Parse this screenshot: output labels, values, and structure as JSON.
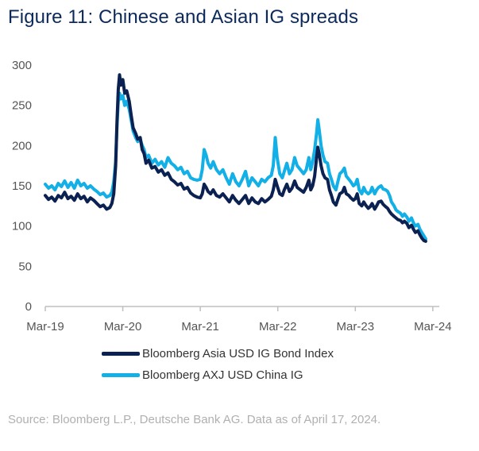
{
  "title": "Figure 11: Chinese and Asian IG spreads",
  "source": "Source: Bloomberg L.P., Deutsche Bank AG. Data as of April 17, 2024.",
  "colors": {
    "asia": "#0b2151",
    "china": "#12b0e6",
    "axis": "#bfbfbf"
  },
  "chart_data": {
    "type": "line",
    "title": "Figure 11: Chinese and Asian IG spreads",
    "xlabel": "",
    "ylabel": "",
    "ylim": [
      0,
      300
    ],
    "yticks": [
      "0",
      "50",
      "100",
      "150",
      "200",
      "250",
      "300"
    ],
    "xtick_labels": [
      "Mar-19",
      "Mar-20",
      "Mar-21",
      "Mar-22",
      "Mar-23",
      "Mar-24"
    ],
    "x_unit": "months since Mar-19",
    "x_range": [
      0,
      61
    ],
    "grid": false,
    "legend_position": "bottom",
    "series": [
      {
        "name": "Bloomberg Asia USD IG Bond Index",
        "color": "#0b2151",
        "points": [
          [
            0,
            138
          ],
          [
            0.5,
            133
          ],
          [
            1,
            136
          ],
          [
            1.5,
            131
          ],
          [
            2,
            138
          ],
          [
            2.5,
            135
          ],
          [
            3,
            142
          ],
          [
            3.5,
            134
          ],
          [
            4,
            137
          ],
          [
            4.5,
            132
          ],
          [
            5,
            140
          ],
          [
            5.5,
            134
          ],
          [
            6,
            137
          ],
          [
            6.5,
            130
          ],
          [
            7,
            135
          ],
          [
            7.5,
            132
          ],
          [
            8,
            128
          ],
          [
            8.5,
            124
          ],
          [
            9,
            126
          ],
          [
            9.5,
            121
          ],
          [
            10,
            123
          ],
          [
            10.3,
            128
          ],
          [
            10.6,
            140
          ],
          [
            10.9,
            175
          ],
          [
            11.1,
            230
          ],
          [
            11.3,
            270
          ],
          [
            11.5,
            288
          ],
          [
            11.7,
            275
          ],
          [
            12,
            282
          ],
          [
            12.3,
            265
          ],
          [
            12.6,
            268
          ],
          [
            13,
            255
          ],
          [
            13.3,
            238
          ],
          [
            13.6,
            222
          ],
          [
            14,
            215
          ],
          [
            14.3,
            208
          ],
          [
            14.7,
            210
          ],
          [
            15,
            195
          ],
          [
            15.3,
            190
          ],
          [
            15.6,
            178
          ],
          [
            16,
            182
          ],
          [
            16.5,
            172
          ],
          [
            17,
            174
          ],
          [
            17.5,
            167
          ],
          [
            18,
            170
          ],
          [
            18.5,
            163
          ],
          [
            19,
            166
          ],
          [
            19.5,
            158
          ],
          [
            20,
            155
          ],
          [
            20.5,
            151
          ],
          [
            21,
            153
          ],
          [
            21.5,
            146
          ],
          [
            22,
            148
          ],
          [
            22.5,
            141
          ],
          [
            23,
            138
          ],
          [
            23.5,
            136
          ],
          [
            24,
            135
          ],
          [
            24.3,
            140
          ],
          [
            24.6,
            152
          ],
          [
            24.9,
            148
          ],
          [
            25.2,
            143
          ],
          [
            25.6,
            140
          ],
          [
            26,
            145
          ],
          [
            26.5,
            138
          ],
          [
            27,
            136
          ],
          [
            27.5,
            140
          ],
          [
            28,
            135
          ],
          [
            28.5,
            130
          ],
          [
            29,
            138
          ],
          [
            29.5,
            132
          ],
          [
            30,
            128
          ],
          [
            30.5,
            133
          ],
          [
            31,
            138
          ],
          [
            31.5,
            128
          ],
          [
            32,
            135
          ],
          [
            32.5,
            130
          ],
          [
            33,
            128
          ],
          [
            33.5,
            134
          ],
          [
            34,
            130
          ],
          [
            34.5,
            133
          ],
          [
            35,
            137
          ],
          [
            35.3,
            145
          ],
          [
            35.6,
            158
          ],
          [
            35.9,
            150
          ],
          [
            36.3,
            140
          ],
          [
            36.7,
            138
          ],
          [
            37,
            145
          ],
          [
            37.4,
            152
          ],
          [
            37.8,
            143
          ],
          [
            38.2,
            147
          ],
          [
            38.6,
            156
          ],
          [
            39,
            148
          ],
          [
            39.5,
            145
          ],
          [
            40,
            142
          ],
          [
            40.4,
            148
          ],
          [
            40.8,
            157
          ],
          [
            41.1,
            145
          ],
          [
            41.4,
            150
          ],
          [
            41.7,
            162
          ],
          [
            42,
            185
          ],
          [
            42.2,
            198
          ],
          [
            42.4,
            190
          ],
          [
            42.7,
            175
          ],
          [
            43,
            165
          ],
          [
            43.3,
            160
          ],
          [
            43.7,
            158
          ],
          [
            44,
            145
          ],
          [
            44.3,
            138
          ],
          [
            44.6,
            130
          ],
          [
            45,
            126
          ],
          [
            45.3,
            133
          ],
          [
            45.6,
            140
          ],
          [
            46,
            142
          ],
          [
            46.3,
            148
          ],
          [
            46.6,
            140
          ],
          [
            47,
            138
          ],
          [
            47.3,
            135
          ],
          [
            47.7,
            132
          ],
          [
            48,
            134
          ],
          [
            48.3,
            140
          ],
          [
            48.6,
            128
          ],
          [
            49,
            125
          ],
          [
            49.3,
            130
          ],
          [
            49.6,
            126
          ],
          [
            50,
            122
          ],
          [
            50.3,
            124
          ],
          [
            50.6,
            128
          ],
          [
            51,
            121
          ],
          [
            51.3,
            125
          ],
          [
            51.6,
            130
          ],
          [
            52,
            131
          ],
          [
            52.3,
            127
          ],
          [
            52.7,
            124
          ],
          [
            53,
            122
          ],
          [
            53.3,
            118
          ],
          [
            53.6,
            115
          ],
          [
            54,
            112
          ],
          [
            54.3,
            110
          ],
          [
            54.6,
            108
          ],
          [
            55,
            107
          ],
          [
            55.3,
            104
          ],
          [
            55.6,
            106
          ],
          [
            56,
            103
          ],
          [
            56.3,
            98
          ],
          [
            56.7,
            101
          ],
          [
            57,
            96
          ],
          [
            57.3,
            92
          ],
          [
            57.7,
            94
          ],
          [
            58,
            89
          ],
          [
            58.3,
            85
          ],
          [
            58.6,
            82
          ],
          [
            58.9,
            81
          ]
        ]
      },
      {
        "name": "Bloomberg AXJ USD China IG",
        "color": "#12b0e6",
        "points": [
          [
            0,
            152
          ],
          [
            0.5,
            147
          ],
          [
            1,
            150
          ],
          [
            1.5,
            145
          ],
          [
            2,
            153
          ],
          [
            2.5,
            149
          ],
          [
            3,
            156
          ],
          [
            3.5,
            148
          ],
          [
            4,
            154
          ],
          [
            4.5,
            147
          ],
          [
            5,
            157
          ],
          [
            5.5,
            150
          ],
          [
            6,
            153
          ],
          [
            6.5,
            147
          ],
          [
            7,
            150
          ],
          [
            7.5,
            146
          ],
          [
            8,
            143
          ],
          [
            8.5,
            139
          ],
          [
            9,
            141
          ],
          [
            9.5,
            136
          ],
          [
            10,
            138
          ],
          [
            10.3,
            142
          ],
          [
            10.6,
            155
          ],
          [
            10.9,
            180
          ],
          [
            11.1,
            225
          ],
          [
            11.3,
            255
          ],
          [
            11.5,
            265
          ],
          [
            11.7,
            258
          ],
          [
            12,
            262
          ],
          [
            12.3,
            250
          ],
          [
            12.6,
            255
          ],
          [
            13,
            245
          ],
          [
            13.3,
            232
          ],
          [
            13.6,
            218
          ],
          [
            14,
            210
          ],
          [
            14.3,
            205
          ],
          [
            14.7,
            208
          ],
          [
            15,
            200
          ],
          [
            15.3,
            195
          ],
          [
            15.6,
            185
          ],
          [
            16,
            188
          ],
          [
            16.5,
            178
          ],
          [
            17,
            183
          ],
          [
            17.5,
            176
          ],
          [
            18,
            180
          ],
          [
            18.5,
            173
          ],
          [
            19,
            185
          ],
          [
            19.5,
            178
          ],
          [
            20,
            175
          ],
          [
            20.5,
            170
          ],
          [
            21,
            173
          ],
          [
            21.5,
            165
          ],
          [
            22,
            168
          ],
          [
            22.5,
            160
          ],
          [
            23,
            158
          ],
          [
            23.5,
            157
          ],
          [
            24,
            158
          ],
          [
            24.3,
            170
          ],
          [
            24.6,
            195
          ],
          [
            24.9,
            188
          ],
          [
            25.2,
            178
          ],
          [
            25.6,
            172
          ],
          [
            26,
            180
          ],
          [
            26.5,
            170
          ],
          [
            27,
            165
          ],
          [
            27.5,
            170
          ],
          [
            28,
            160
          ],
          [
            28.5,
            152
          ],
          [
            29,
            165
          ],
          [
            29.5,
            155
          ],
          [
            30,
            150
          ],
          [
            30.5,
            158
          ],
          [
            31,
            168
          ],
          [
            31.5,
            150
          ],
          [
            32,
            160
          ],
          [
            32.5,
            155
          ],
          [
            33,
            150
          ],
          [
            33.5,
            158
          ],
          [
            34,
            155
          ],
          [
            34.5,
            160
          ],
          [
            35,
            163
          ],
          [
            35.3,
            175
          ],
          [
            35.6,
            210
          ],
          [
            35.9,
            185
          ],
          [
            36.3,
            165
          ],
          [
            36.7,
            160
          ],
          [
            37,
            168
          ],
          [
            37.4,
            178
          ],
          [
            37.8,
            165
          ],
          [
            38.2,
            170
          ],
          [
            38.6,
            185
          ],
          [
            39,
            175
          ],
          [
            39.5,
            170
          ],
          [
            40,
            165
          ],
          [
            40.4,
            170
          ],
          [
            40.8,
            185
          ],
          [
            41.1,
            170
          ],
          [
            41.4,
            180
          ],
          [
            41.7,
            195
          ],
          [
            42,
            215
          ],
          [
            42.2,
            232
          ],
          [
            42.4,
            220
          ],
          [
            42.7,
            200
          ],
          [
            43,
            188
          ],
          [
            43.3,
            180
          ],
          [
            43.7,
            178
          ],
          [
            44,
            165
          ],
          [
            44.3,
            158
          ],
          [
            44.6,
            150
          ],
          [
            45,
            145
          ],
          [
            45.3,
            155
          ],
          [
            45.6,
            165
          ],
          [
            46,
            168
          ],
          [
            46.3,
            172
          ],
          [
            46.6,
            162
          ],
          [
            47,
            158
          ],
          [
            47.3,
            155
          ],
          [
            47.7,
            150
          ],
          [
            48,
            152
          ],
          [
            48.3,
            158
          ],
          [
            48.6,
            145
          ],
          [
            49,
            140
          ],
          [
            49.3,
            148
          ],
          [
            49.6,
            143
          ],
          [
            50,
            140
          ],
          [
            50.3,
            142
          ],
          [
            50.6,
            148
          ],
          [
            51,
            140
          ],
          [
            51.3,
            145
          ],
          [
            51.6,
            148
          ],
          [
            52,
            150
          ],
          [
            52.3,
            146
          ],
          [
            52.7,
            145
          ],
          [
            53,
            143
          ],
          [
            53.3,
            138
          ],
          [
            53.6,
            130
          ],
          [
            54,
            125
          ],
          [
            54.3,
            120
          ],
          [
            54.6,
            118
          ],
          [
            55,
            116
          ],
          [
            55.3,
            112
          ],
          [
            55.6,
            115
          ],
          [
            56,
            111
          ],
          [
            56.3,
            106
          ],
          [
            56.7,
            110
          ],
          [
            57,
            104
          ],
          [
            57.3,
            100
          ],
          [
            57.7,
            102
          ],
          [
            58,
            96
          ],
          [
            58.3,
            92
          ],
          [
            58.6,
            88
          ],
          [
            58.9,
            84
          ]
        ]
      }
    ]
  }
}
